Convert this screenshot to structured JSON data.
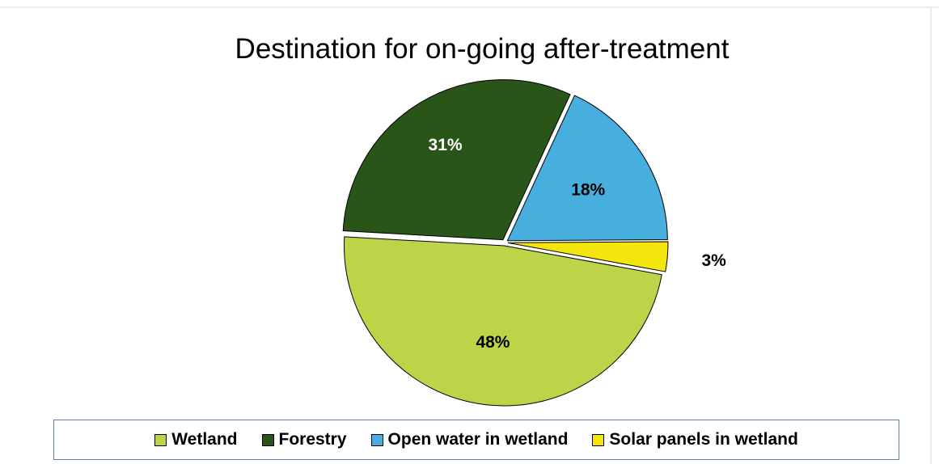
{
  "chart_data": {
    "type": "pie",
    "title": "Destination for on-going after-treatment",
    "categories": [
      "Wetland",
      "Forestry",
      "Open water in wetland",
      "Solar panels in wetland"
    ],
    "values": [
      48,
      31,
      18,
      3
    ],
    "labels": [
      "48%",
      "31%",
      "18%",
      "3%"
    ],
    "colors": [
      "#bdd348",
      "#2a5518",
      "#47aede",
      "#f4e60c"
    ],
    "label_colors": [
      "#000000",
      "#ffffff",
      "#000000",
      "#000000"
    ],
    "legend": "bottom"
  }
}
